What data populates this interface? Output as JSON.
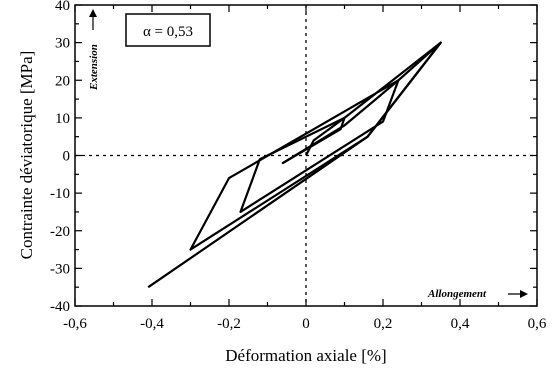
{
  "chart_data": {
    "type": "line",
    "title": "",
    "xlabel": "Déformation axiale [%]",
    "ylabel": "Contrainte déviatorique [MPa]",
    "xlim": [
      -0.6,
      0.6
    ],
    "ylim": [
      -40,
      40
    ],
    "xticks": [
      -0.6,
      -0.4,
      -0.2,
      0,
      0.2,
      0.4,
      0.6
    ],
    "xtick_labels": [
      "-0,6",
      "-0,4",
      "-0,2",
      "0",
      "0,2",
      "0,4",
      "0,6"
    ],
    "yticks": [
      -40,
      -30,
      -20,
      -10,
      0,
      10,
      20,
      30,
      40
    ],
    "ytick_labels": [
      "-40",
      "-30",
      "-20",
      "-10",
      "0",
      "10",
      "20",
      "30",
      "40"
    ],
    "grid": false,
    "zero_lines": "dashed",
    "legend_box": "α = 0,53",
    "annotations": [
      {
        "text": "Extension",
        "direction": "up",
        "placement": "top-left"
      },
      {
        "text": "Allongement",
        "direction": "right",
        "placement": "bottom-right"
      }
    ],
    "series": [
      {
        "x": [
          0.0,
          0.02,
          0.1,
          0.09,
          -0.06,
          0.02
        ],
        "y": [
          0,
          4,
          10,
          7,
          -2,
          3
        ]
      },
      {
        "x": [
          0.02,
          0.1,
          0.24,
          0.2,
          -0.17,
          -0.12,
          0.1
        ],
        "y": [
          3,
          8,
          20,
          9,
          -15,
          -1,
          10
        ]
      },
      {
        "x": [
          0.1,
          0.35,
          0.16,
          -0.3,
          -0.2,
          0.24
        ],
        "y": [
          10,
          30,
          5,
          -25,
          -6,
          20
        ]
      },
      {
        "x": [
          0.24,
          0.35,
          0.16,
          -0.41
        ],
        "y": [
          20,
          30,
          5,
          -35
        ]
      }
    ],
    "color": "#000000"
  }
}
